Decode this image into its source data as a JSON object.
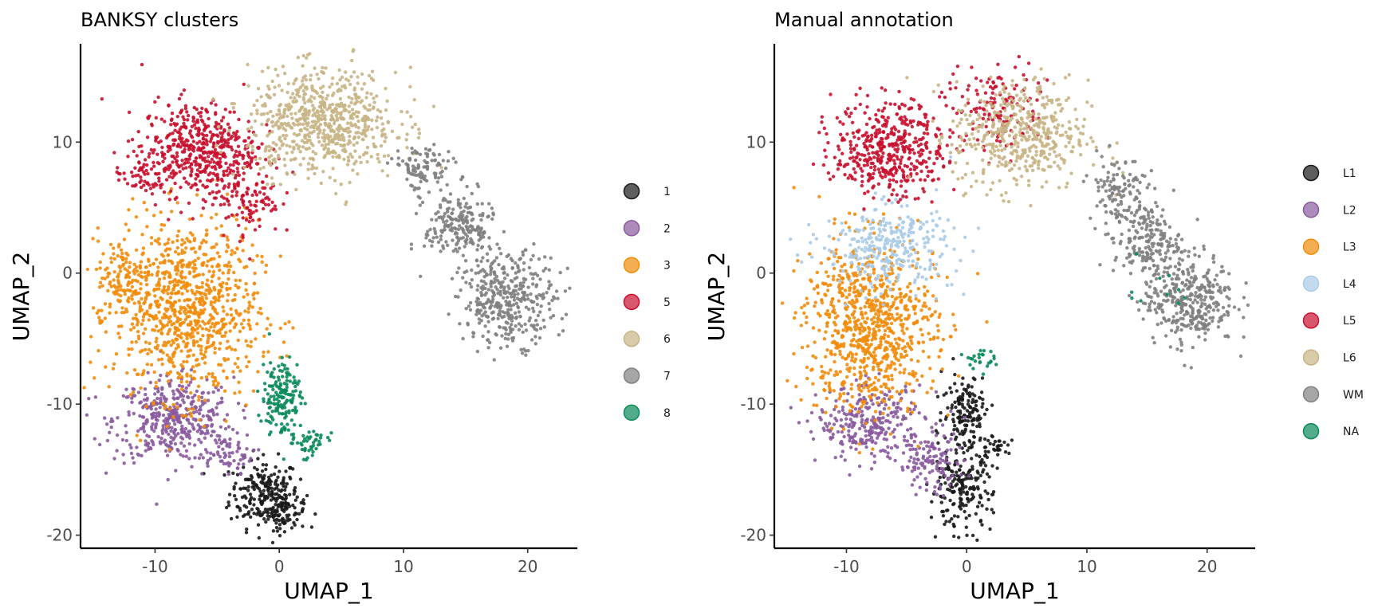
{
  "chart_data": [
    {
      "type": "scatter",
      "title": "BANKSY clusters",
      "xlabel": "UMAP_1",
      "ylabel": "UMAP_2",
      "xlim": [
        -16,
        24
      ],
      "ylim": [
        -21,
        17.5
      ],
      "xticks": [
        -10,
        0,
        10,
        20
      ],
      "xtick_labels": [
        "-10",
        "0",
        "10",
        "20"
      ],
      "yticks": [
        -20,
        -10,
        0,
        10
      ],
      "ytick_labels": [
        "-20",
        "-10",
        "0",
        "10"
      ],
      "grid": false,
      "legend_position": "right",
      "series": [
        {
          "name": "1",
          "color": "#1a1a1a",
          "clusters": [
            {
              "x": -1.2,
              "y": -16.8,
              "sx": 1.4,
              "sy": 1.3,
              "n": 220
            },
            {
              "x": 0.4,
              "y": -18.2,
              "sx": 0.9,
              "sy": 0.7,
              "n": 80
            }
          ]
        },
        {
          "name": "2",
          "color": "#8a5a9e",
          "clusters": [
            {
              "x": -8.5,
              "y": -11.2,
              "sx": 2.4,
              "sy": 1.6,
              "n": 420
            },
            {
              "x": -4.5,
              "y": -13.8,
              "sx": 1.2,
              "sy": 0.8,
              "n": 60
            }
          ]
        },
        {
          "name": "3",
          "color": "#f28c0a",
          "clusters": [
            {
              "x": -7.5,
              "y": -2.8,
              "sx": 2.9,
              "sy": 3.4,
              "n": 900
            },
            {
              "x": -12.3,
              "y": -0.5,
              "sx": 1.2,
              "sy": 1.5,
              "n": 120
            }
          ]
        },
        {
          "name": "5",
          "color": "#c8102e",
          "clusters": [
            {
              "x": -6.5,
              "y": 9.5,
              "sx": 2.3,
              "sy": 1.8,
              "n": 480
            },
            {
              "x": -11.0,
              "y": 7.5,
              "sx": 1.1,
              "sy": 0.8,
              "n": 60
            },
            {
              "x": -2.5,
              "y": 6.0,
              "sx": 1.3,
              "sy": 1.6,
              "n": 120
            }
          ]
        },
        {
          "name": "6",
          "color": "#c8b585",
          "clusters": [
            {
              "x": 3.5,
              "y": 11.5,
              "sx": 3.0,
              "sy": 2.0,
              "n": 700
            }
          ]
        },
        {
          "name": "7",
          "color": "#808080",
          "clusters": [
            {
              "x": 11.5,
              "y": 8.0,
              "sx": 1.2,
              "sy": 0.9,
              "n": 100
            },
            {
              "x": 14.5,
              "y": 3.5,
              "sx": 1.4,
              "sy": 1.4,
              "n": 220
            },
            {
              "x": 18.5,
              "y": -2.0,
              "sx": 1.9,
              "sy": 1.7,
              "n": 380
            }
          ]
        },
        {
          "name": "8",
          "color": "#0a8a5a",
          "clusters": [
            {
              "x": 0.2,
              "y": -9.5,
              "sx": 0.8,
              "sy": 1.6,
              "n": 170
            },
            {
              "x": 2.5,
              "y": -13.0,
              "sx": 0.7,
              "sy": 0.6,
              "n": 40
            }
          ]
        }
      ]
    },
    {
      "type": "scatter",
      "title": "Manual annotation",
      "xlabel": "UMAP_1",
      "ylabel": "UMAP_2",
      "xlim": [
        -16,
        24
      ],
      "ylim": [
        -21,
        17.5
      ],
      "xticks": [
        -10,
        0,
        10,
        20
      ],
      "xtick_labels": [
        "-10",
        "0",
        "10",
        "20"
      ],
      "yticks": [
        -20,
        -10,
        0,
        10
      ],
      "ytick_labels": [
        "-20",
        "-10",
        "0",
        "10"
      ],
      "grid": false,
      "legend_position": "right",
      "series": [
        {
          "name": "L1",
          "color": "#1a1a1a",
          "clusters": [
            {
              "x": -0.5,
              "y": -16.5,
              "sx": 1.3,
              "sy": 1.5,
              "n": 200
            },
            {
              "x": 0.0,
              "y": -10.5,
              "sx": 1.0,
              "sy": 1.4,
              "n": 150
            },
            {
              "x": 2.5,
              "y": -13.2,
              "sx": 0.6,
              "sy": 0.5,
              "n": 30
            }
          ]
        },
        {
          "name": "L2",
          "color": "#8a5a9e",
          "clusters": [
            {
              "x": -8.0,
              "y": -11.5,
              "sx": 2.2,
              "sy": 1.4,
              "n": 280
            },
            {
              "x": -3.0,
              "y": -14.5,
              "sx": 1.4,
              "sy": 1.2,
              "n": 120
            }
          ]
        },
        {
          "name": "L3",
          "color": "#f28c0a",
          "clusters": [
            {
              "x": -8.0,
              "y": -4.0,
              "sx": 2.7,
              "sy": 3.3,
              "n": 850
            }
          ]
        },
        {
          "name": "L4",
          "color": "#aacbe8",
          "clusters": [
            {
              "x": -6.5,
              "y": 2.0,
              "sx": 2.7,
              "sy": 1.6,
              "n": 320
            }
          ]
        },
        {
          "name": "L5",
          "color": "#c8102e",
          "clusters": [
            {
              "x": -6.5,
              "y": 9.5,
              "sx": 2.3,
              "sy": 1.8,
              "n": 450
            },
            {
              "x": 2.5,
              "y": 12.5,
              "sx": 2.2,
              "sy": 1.7,
              "n": 140
            }
          ]
        },
        {
          "name": "L6",
          "color": "#c8b585",
          "clusters": [
            {
              "x": 4.5,
              "y": 10.5,
              "sx": 2.8,
              "sy": 2.1,
              "n": 480
            }
          ]
        },
        {
          "name": "WM",
          "color": "#808080",
          "clusters": [
            {
              "x": 12.5,
              "y": 6.5,
              "sx": 1.2,
              "sy": 1.3,
              "n": 110
            },
            {
              "x": 15.0,
              "y": 2.5,
              "sx": 1.4,
              "sy": 1.4,
              "n": 200
            },
            {
              "x": 18.5,
              "y": -2.0,
              "sx": 1.9,
              "sy": 1.7,
              "n": 360
            }
          ]
        },
        {
          "name": "NA",
          "color": "#0a8a5a",
          "clusters": [
            {
              "x": 1.0,
              "y": -6.5,
              "sx": 0.6,
              "sy": 0.4,
              "n": 25
            },
            {
              "x": 15.0,
              "y": -1.0,
              "sx": 2.0,
              "sy": 1.0,
              "n": 10
            }
          ]
        }
      ]
    }
  ]
}
